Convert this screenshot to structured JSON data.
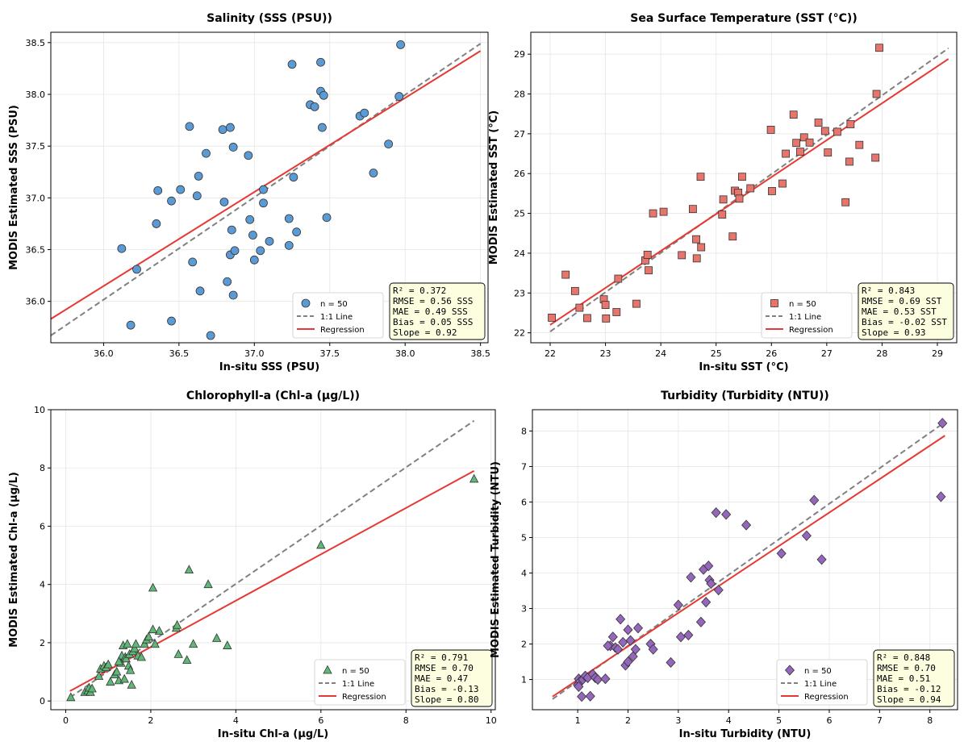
{
  "chart_data": [
    {
      "type": "scatter",
      "title": "Salinity (SSS (PSU))",
      "xlabel": "In-situ SSS (PSU)",
      "ylabel": "MODIS Estimated SSS (PSU)",
      "xlim": [
        35.65,
        38.55
      ],
      "ylim": [
        35.6,
        38.6
      ],
      "xticks": [
        "36.0",
        "36.5",
        "37.0",
        "37.5",
        "38.0",
        "38.5"
      ],
      "xtick_values": [
        36.0,
        36.5,
        37.0,
        37.5,
        38.0,
        38.5
      ],
      "yticks": [
        "36.0",
        "36.5",
        "37.0",
        "37.5",
        "38.0",
        "38.5"
      ],
      "ytick_values": [
        36.0,
        36.5,
        37.0,
        37.5,
        38.0,
        38.5
      ],
      "marker": "circle",
      "color": "#5b9bd5",
      "grid": true,
      "legend_position": "lower-right",
      "legend": [
        "n = 50",
        "1:1 Line",
        "Regression"
      ],
      "stats": [
        "R² = 0.372",
        "RMSE = 0.56 SSS",
        "MAE = 0.49 SSS",
        "Bias = 0.05 SSS",
        "Slope = 0.92"
      ],
      "regression": {
        "x": [
          35.65,
          38.5
        ],
        "y": [
          35.83,
          38.42
        ]
      },
      "one_to_one": {
        "x": [
          35.65,
          38.5
        ],
        "y": [
          35.67,
          38.49
        ]
      },
      "points": [
        [
          36.12,
          36.51
        ],
        [
          36.18,
          35.77
        ],
        [
          36.22,
          36.31
        ],
        [
          36.35,
          36.75
        ],
        [
          36.36,
          37.07
        ],
        [
          36.45,
          36.97
        ],
        [
          36.45,
          35.81
        ],
        [
          36.51,
          37.08
        ],
        [
          36.57,
          37.69
        ],
        [
          36.59,
          36.38
        ],
        [
          36.62,
          37.02
        ],
        [
          36.63,
          37.21
        ],
        [
          36.64,
          36.1
        ],
        [
          36.68,
          37.43
        ],
        [
          36.71,
          35.67
        ],
        [
          36.79,
          37.66
        ],
        [
          36.8,
          36.96
        ],
        [
          36.82,
          36.19
        ],
        [
          36.84,
          37.68
        ],
        [
          36.84,
          36.45
        ],
        [
          36.85,
          36.69
        ],
        [
          36.86,
          37.49
        ],
        [
          36.86,
          36.06
        ],
        [
          36.87,
          36.49
        ],
        [
          36.96,
          37.41
        ],
        [
          36.97,
          36.79
        ],
        [
          36.99,
          36.64
        ],
        [
          37.0,
          36.4
        ],
        [
          37.04,
          36.49
        ],
        [
          37.06,
          37.08
        ],
        [
          37.06,
          36.95
        ],
        [
          37.1,
          36.58
        ],
        [
          37.23,
          36.8
        ],
        [
          37.23,
          36.54
        ],
        [
          37.25,
          38.29
        ],
        [
          37.26,
          37.2
        ],
        [
          37.28,
          36.67
        ],
        [
          37.37,
          37.9
        ],
        [
          37.4,
          37.88
        ],
        [
          37.44,
          38.31
        ],
        [
          37.44,
          38.03
        ],
        [
          37.45,
          37.68
        ],
        [
          37.46,
          37.99
        ],
        [
          37.48,
          36.81
        ],
        [
          37.7,
          37.79
        ],
        [
          37.73,
          37.82
        ],
        [
          37.79,
          37.24
        ],
        [
          37.89,
          37.52
        ],
        [
          37.96,
          37.98
        ],
        [
          37.97,
          38.48
        ]
      ]
    },
    {
      "type": "scatter",
      "title": "Sea Surface Temperature (SST (°C))",
      "xlabel": "In-situ SST (°C)",
      "ylabel": "MODIS Estimated SST (°C)",
      "xlim": [
        21.65,
        29.35
      ],
      "ylim": [
        21.75,
        29.55
      ],
      "xticks": [
        "22",
        "23",
        "24",
        "25",
        "26",
        "27",
        "28",
        "29"
      ],
      "xtick_values": [
        22,
        23,
        24,
        25,
        26,
        27,
        28,
        29
      ],
      "yticks": [
        "22",
        "23",
        "24",
        "25",
        "26",
        "27",
        "28",
        "29"
      ],
      "ytick_values": [
        22,
        23,
        24,
        25,
        26,
        27,
        28,
        29
      ],
      "marker": "square",
      "color": "#e8756b",
      "grid": true,
      "legend_position": "lower-right",
      "legend": [
        "n = 50",
        "1:1 Line",
        "Regression"
      ],
      "stats": [
        "R² = 0.843",
        "RMSE = 0.69 SST",
        "MAE = 0.53 SST",
        "Bias = -0.02 SST",
        "Slope = 0.93"
      ],
      "regression": {
        "x": [
          22.0,
          29.2
        ],
        "y": [
          22.2,
          28.88
        ]
      },
      "one_to_one": {
        "x": [
          22.0,
          29.2
        ],
        "y": [
          22.03,
          29.15
        ]
      },
      "points": [
        [
          22.03,
          22.38
        ],
        [
          22.28,
          23.46
        ],
        [
          22.45,
          23.05
        ],
        [
          22.53,
          22.63
        ],
        [
          22.67,
          22.37
        ],
        [
          22.97,
          22.84
        ],
        [
          23.0,
          22.7
        ],
        [
          23.01,
          22.36
        ],
        [
          23.2,
          22.52
        ],
        [
          23.23,
          23.36
        ],
        [
          23.56,
          22.73
        ],
        [
          23.72,
          23.82
        ],
        [
          23.76,
          23.96
        ],
        [
          23.78,
          23.57
        ],
        [
          23.86,
          25.0
        ],
        [
          24.05,
          25.04
        ],
        [
          24.38,
          23.95
        ],
        [
          24.58,
          25.11
        ],
        [
          24.64,
          24.35
        ],
        [
          24.65,
          23.87
        ],
        [
          24.73,
          24.15
        ],
        [
          24.72,
          25.92
        ],
        [
          25.11,
          24.97
        ],
        [
          25.13,
          25.35
        ],
        [
          25.3,
          24.42
        ],
        [
          25.34,
          25.57
        ],
        [
          25.4,
          25.52
        ],
        [
          25.42,
          25.37
        ],
        [
          25.47,
          25.92
        ],
        [
          25.62,
          25.63
        ],
        [
          25.99,
          27.1
        ],
        [
          26.01,
          25.56
        ],
        [
          26.2,
          25.75
        ],
        [
          26.26,
          26.5
        ],
        [
          26.4,
          27.48
        ],
        [
          26.45,
          26.77
        ],
        [
          26.52,
          26.55
        ],
        [
          26.59,
          26.91
        ],
        [
          26.69,
          26.78
        ],
        [
          26.85,
          27.28
        ],
        [
          26.97,
          27.07
        ],
        [
          27.02,
          26.53
        ],
        [
          27.19,
          27.05
        ],
        [
          27.34,
          25.28
        ],
        [
          27.41,
          26.3
        ],
        [
          27.43,
          27.24
        ],
        [
          27.59,
          26.72
        ],
        [
          27.88,
          26.4
        ],
        [
          27.9,
          28.0
        ],
        [
          27.95,
          29.16
        ]
      ]
    },
    {
      "type": "scatter",
      "title": "Chlorophyll-a (Chl-a (μg/L))",
      "xlabel": "In-situ Chl-a (μg/L)",
      "ylabel": "MODIS Estimated Chl-a (μg/L)",
      "xlim": [
        -0.35,
        10.1
      ],
      "ylim": [
        -0.3,
        10.0
      ],
      "xticks": [
        "0",
        "2",
        "4",
        "6",
        "8",
        "10"
      ],
      "xtick_values": [
        0,
        2,
        4,
        6,
        8,
        10
      ],
      "yticks": [
        "0",
        "2",
        "4",
        "6",
        "8",
        "10"
      ],
      "ytick_values": [
        0,
        2,
        4,
        6,
        8,
        10
      ],
      "marker": "triangle",
      "color": "#5fb878",
      "grid": true,
      "legend_position": "lower-right",
      "legend": [
        "n = 50",
        "1:1 Line",
        "Regression"
      ],
      "stats": [
        "R² = 0.791",
        "RMSE = 0.70",
        "MAE = 0.47",
        "Bias = -0.13",
        "Slope = 0.80"
      ],
      "regression": {
        "x": [
          0.1,
          9.6
        ],
        "y": [
          0.34,
          7.9
        ]
      },
      "one_to_one": {
        "x": [
          0.1,
          9.6
        ],
        "y": [
          0.12,
          9.62
        ]
      },
      "points": [
        [
          0.12,
          0.12
        ],
        [
          0.45,
          0.3
        ],
        [
          0.52,
          0.35
        ],
        [
          0.55,
          0.45
        ],
        [
          0.58,
          0.3
        ],
        [
          0.62,
          0.42
        ],
        [
          0.78,
          0.85
        ],
        [
          0.82,
          1.1
        ],
        [
          0.9,
          1.2
        ],
        [
          0.95,
          1.15
        ],
        [
          1.0,
          1.25
        ],
        [
          1.05,
          0.65
        ],
        [
          1.15,
          0.9
        ],
        [
          1.2,
          1.0
        ],
        [
          1.25,
          0.7
        ],
        [
          1.3,
          1.3
        ],
        [
          1.32,
          1.55
        ],
        [
          1.35,
          1.9
        ],
        [
          1.38,
          0.75
        ],
        [
          1.4,
          1.5
        ],
        [
          1.42,
          1.45
        ],
        [
          1.45,
          1.95
        ],
        [
          1.48,
          1.2
        ],
        [
          1.5,
          1.6
        ],
        [
          1.52,
          1.05
        ],
        [
          1.55,
          0.55
        ],
        [
          1.58,
          1.7
        ],
        [
          1.62,
          1.8
        ],
        [
          1.65,
          1.95
        ],
        [
          1.7,
          1.55
        ],
        [
          1.78,
          1.5
        ],
        [
          1.85,
          1.95
        ],
        [
          1.9,
          2.1
        ],
        [
          1.95,
          2.2
        ],
        [
          2.05,
          3.88
        ],
        [
          2.1,
          1.95
        ],
        [
          2.2,
          2.4
        ],
        [
          2.6,
          2.5
        ],
        [
          2.62,
          2.6
        ],
        [
          2.65,
          1.6
        ],
        [
          2.85,
          1.4
        ],
        [
          2.9,
          4.5
        ],
        [
          3.0,
          1.95
        ],
        [
          3.35,
          4.0
        ],
        [
          3.55,
          2.15
        ],
        [
          3.8,
          1.9
        ],
        [
          6.0,
          5.35
        ],
        [
          9.6,
          7.62
        ],
        [
          2.05,
          2.45
        ],
        [
          1.25,
          1.35
        ]
      ]
    },
    {
      "type": "scatter",
      "title": "Turbidity (Turbidity (NTU))",
      "xlabel": "In-situ Turbidity (NTU)",
      "ylabel": "MODIS Estimated Turbidity (NTU)",
      "xlim": [
        0.1,
        8.55
      ],
      "ylim": [
        0.15,
        8.6
      ],
      "xticks": [
        "1",
        "2",
        "3",
        "4",
        "5",
        "6",
        "7",
        "8"
      ],
      "xtick_values": [
        1,
        2,
        3,
        4,
        5,
        6,
        7,
        8
      ],
      "yticks": [
        "1",
        "2",
        "3",
        "4",
        "5",
        "6",
        "7",
        "8"
      ],
      "ytick_values": [
        1,
        2,
        3,
        4,
        5,
        6,
        7,
        8
      ],
      "marker": "diamond",
      "color": "#9467bd",
      "grid": true,
      "legend_position": "lower-right",
      "legend": [
        "n = 50",
        "1:1 Line",
        "Regression"
      ],
      "stats": [
        "R² = 0.848",
        "RMSE = 0.70",
        "MAE = 0.51",
        "Bias = -0.12",
        "Slope = 0.94"
      ],
      "regression": {
        "x": [
          0.5,
          8.3
        ],
        "y": [
          0.52,
          7.87
        ]
      },
      "one_to_one": {
        "x": [
          0.5,
          8.3
        ],
        "y": [
          0.45,
          8.25
        ]
      },
      "points": [
        [
          1.0,
          0.85
        ],
        [
          1.02,
          1.02
        ],
        [
          1.05,
          0.95
        ],
        [
          1.08,
          0.52
        ],
        [
          1.1,
          1.0
        ],
        [
          1.15,
          1.1
        ],
        [
          1.2,
          1.05
        ],
        [
          1.25,
          0.53
        ],
        [
          1.3,
          1.15
        ],
        [
          1.35,
          1.05
        ],
        [
          1.4,
          1.0
        ],
        [
          1.55,
          1.02
        ],
        [
          1.65,
          1.95
        ],
        [
          1.7,
          2.2
        ],
        [
          1.75,
          1.9
        ],
        [
          1.8,
          1.85
        ],
        [
          1.85,
          2.7
        ],
        [
          1.9,
          2.05
        ],
        [
          1.95,
          1.4
        ],
        [
          2.0,
          1.5
        ],
        [
          2.05,
          2.1
        ],
        [
          2.1,
          1.65
        ],
        [
          2.15,
          1.85
        ],
        [
          2.2,
          2.45
        ],
        [
          2.45,
          2.0
        ],
        [
          2.5,
          1.85
        ],
        [
          2.85,
          1.48
        ],
        [
          3.0,
          3.1
        ],
        [
          3.05,
          2.2
        ],
        [
          3.2,
          2.25
        ],
        [
          3.25,
          3.88
        ],
        [
          3.45,
          2.62
        ],
        [
          3.5,
          4.1
        ],
        [
          3.55,
          3.18
        ],
        [
          3.6,
          4.2
        ],
        [
          3.62,
          3.8
        ],
        [
          3.65,
          3.7
        ],
        [
          3.75,
          5.7
        ],
        [
          3.8,
          3.52
        ],
        [
          3.95,
          5.65
        ],
        [
          4.35,
          5.35
        ],
        [
          5.05,
          4.55
        ],
        [
          5.55,
          5.05
        ],
        [
          5.7,
          6.05
        ],
        [
          5.85,
          4.38
        ],
        [
          8.25,
          8.22
        ],
        [
          8.22,
          6.15
        ],
        [
          2.0,
          2.4
        ],
        [
          1.6,
          1.95
        ],
        [
          1.02,
          0.8
        ]
      ]
    }
  ]
}
